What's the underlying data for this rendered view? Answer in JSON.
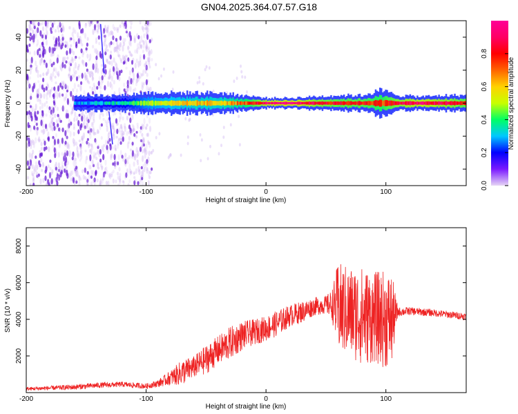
{
  "figure_title": "GN04.2025.364.07.57.G18",
  "colors": {
    "snr_line": "#ee2222",
    "spectrogram_scatter": "#6a1fd6",
    "axis": "#000000"
  },
  "chart_data": [
    {
      "type": "heatmap",
      "title": "GN04.2025.364.07.57.G18",
      "xlabel": "Height of straight line (km)",
      "ylabel": "Frequency (Hz)",
      "xlim": [
        -200,
        167
      ],
      "ylim": [
        -50,
        50
      ],
      "xticks": [
        -200,
        -100,
        0,
        100
      ],
      "yticks": [
        -40,
        -20,
        0,
        20,
        40
      ],
      "colorbar": {
        "label": "Normalized spectral amplitude",
        "range": [
          0,
          1
        ],
        "ticks": [
          0.0,
          0.2,
          0.4,
          0.6,
          0.8
        ],
        "tick_labels": [
          "0.0",
          "0.2",
          "0.4",
          "0.6",
          "0.8"
        ],
        "colormap": [
          "#e6d6f5",
          "#7a1aff",
          "#0000ff",
          "#00c8ff",
          "#00ff64",
          "#c8ff00",
          "#ffd200",
          "#ff6400",
          "#ff0000",
          "#ff0064",
          "#ff0096"
        ]
      },
      "noise_region_x": [
        -200,
        -95
      ],
      "signal_band": {
        "center_hz": 0,
        "points": [
          {
            "x": -160,
            "halfwidth_hz": 3,
            "amplitude": 0.3
          },
          {
            "x": -120,
            "halfwidth_hz": 3,
            "amplitude": 0.35
          },
          {
            "x": -100,
            "halfwidth_hz": 4,
            "amplitude": 0.5
          },
          {
            "x": -80,
            "halfwidth_hz": 4,
            "amplitude": 0.55
          },
          {
            "x": -60,
            "halfwidth_hz": 4,
            "amplitude": 0.6
          },
          {
            "x": -40,
            "halfwidth_hz": 4,
            "amplitude": 0.6
          },
          {
            "x": -20,
            "halfwidth_hz": 3,
            "amplitude": 0.7
          },
          {
            "x": 0,
            "halfwidth_hz": 2,
            "amplitude": 0.9
          },
          {
            "x": 20,
            "halfwidth_hz": 2,
            "amplitude": 0.95
          },
          {
            "x": 40,
            "halfwidth_hz": 2.5,
            "amplitude": 0.85
          },
          {
            "x": 60,
            "halfwidth_hz": 3,
            "amplitude": 0.8
          },
          {
            "x": 80,
            "halfwidth_hz": 3,
            "amplitude": 0.8
          },
          {
            "x": 95,
            "halfwidth_hz": 5,
            "amplitude": 0.75
          },
          {
            "x": 110,
            "halfwidth_hz": 3,
            "amplitude": 0.85
          },
          {
            "x": 130,
            "halfwidth_hz": 2.5,
            "amplitude": 0.9
          },
          {
            "x": 150,
            "halfwidth_hz": 3,
            "amplitude": 0.85
          },
          {
            "x": 167,
            "halfwidth_hz": 3,
            "amplitude": 0.8
          }
        ]
      }
    },
    {
      "type": "line",
      "xlabel": "Height of straight line (km)",
      "ylabel": "SNR (10 * v/v)",
      "xlim": [
        -200,
        167
      ],
      "ylim": [
        0,
        9000
      ],
      "xticks": [
        -200,
        -100,
        0,
        100
      ],
      "yticks": [
        2000,
        4000,
        6000,
        8000
      ],
      "series": [
        {
          "name": "SNR",
          "x": [
            -200,
            -180,
            -160,
            -140,
            -120,
            -100,
            -90,
            -80,
            -70,
            -60,
            -50,
            -40,
            -30,
            -20,
            -10,
            0,
            10,
            20,
            30,
            40,
            50,
            55,
            60,
            70,
            80,
            90,
            100,
            105,
            110,
            120,
            140,
            167
          ],
          "mean": [
            200,
            250,
            300,
            400,
            450,
            350,
            500,
            800,
            1100,
            1400,
            1800,
            2300,
            2700,
            3100,
            3300,
            3500,
            3800,
            4200,
            4400,
            4700,
            4800,
            4800,
            4600,
            4400,
            4200,
            4100,
            4000,
            4000,
            4400,
            4450,
            4350,
            4150
          ],
          "spread": [
            100,
            120,
            150,
            150,
            150,
            150,
            200,
            400,
            700,
            600,
            800,
            800,
            900,
            800,
            700,
            700,
            700,
            600,
            600,
            500,
            500,
            800,
            2500,
            2500,
            2700,
            2500,
            2700,
            2500,
            250,
            220,
            200,
            200
          ]
        }
      ]
    }
  ]
}
